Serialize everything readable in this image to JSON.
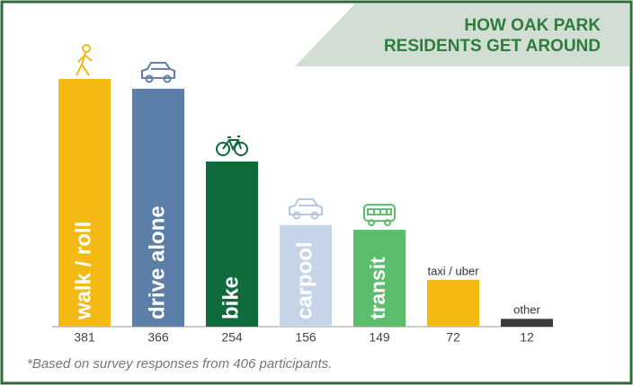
{
  "chart_data": {
    "type": "bar",
    "title": [
      "HOW OAK PARK",
      "RESIDENTS GET AROUND"
    ],
    "categories": [
      "walk / roll",
      "drive alone",
      "bike",
      "carpool",
      "transit",
      "taxi / uber",
      "other"
    ],
    "values": [
      381,
      366,
      254,
      156,
      149,
      72,
      12
    ],
    "colors": [
      "#f5b914",
      "#5b7fa8",
      "#0f6b3b",
      "#c5d4e6",
      "#5cbd6c",
      "#f5b914",
      "#3b3b3b"
    ],
    "footnote": "*Based on survey responses from 406 participants."
  }
}
